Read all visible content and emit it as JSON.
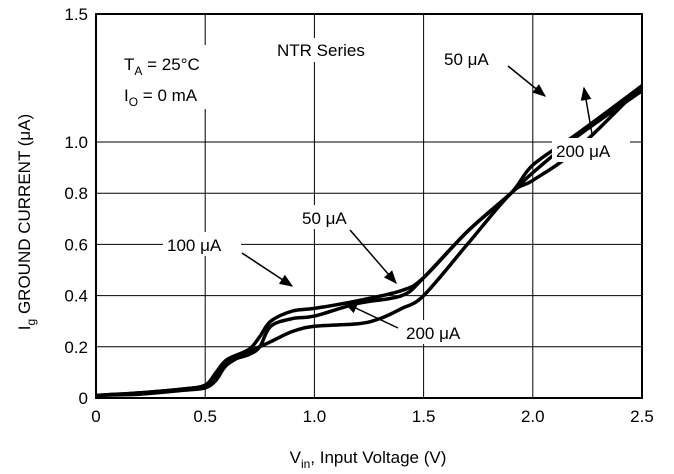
{
  "chart_data": {
    "type": "line",
    "title": "",
    "xlabel_main": "V",
    "xlabel_sub": "in",
    "xlabel_rest": ", Input Voltage (V)",
    "ylabel_main": "I",
    "ylabel_sub": "g",
    "ylabel_rest": " GROUND CURRENT (μA)",
    "xlim": [
      0,
      2.5
    ],
    "ylim": [
      0,
      1.5
    ],
    "xticks": [
      "0",
      "0.5",
      "1.0",
      "1.5",
      "2.0",
      "2.5"
    ],
    "yticks": [
      "0",
      "0.2",
      "0.4",
      "0.6",
      "0.8",
      "1.0",
      "1.5"
    ],
    "grid": true,
    "notes": {
      "series_name": "NTR Series",
      "ta_main": "T",
      "ta_sub": "A",
      "ta_rest": " = 25°C",
      "io_main": "I",
      "io_sub": "O",
      "io_rest": " = 0 mA"
    },
    "series_labels": [
      {
        "text": "50 μA",
        "target": "50uA-upper"
      },
      {
        "text": "200 μA",
        "target": "200uA-upper"
      },
      {
        "text": "50 μA",
        "target": "50uA-lower"
      },
      {
        "text": "100 μA",
        "target": "100uA"
      },
      {
        "text": "200 μA",
        "target": "200uA-lower"
      }
    ],
    "series": [
      {
        "id": "50uA",
        "x": [
          0,
          0.2,
          0.4,
          0.5,
          0.55,
          0.6,
          0.7,
          0.75,
          0.8,
          0.9,
          1.0,
          1.2,
          1.4,
          1.5,
          1.7,
          1.9,
          2.0,
          2.2,
          2.5
        ],
        "y": [
          0.01,
          0.02,
          0.035,
          0.05,
          0.09,
          0.14,
          0.17,
          0.2,
          0.28,
          0.31,
          0.32,
          0.37,
          0.4,
          0.47,
          0.65,
          0.8,
          0.91,
          1.03,
          1.22
        ]
      },
      {
        "id": "100uA",
        "x": [
          0,
          0.2,
          0.4,
          0.5,
          0.55,
          0.6,
          0.7,
          0.75,
          0.8,
          0.9,
          1.0,
          1.2,
          1.4,
          1.5,
          1.7,
          1.9,
          2.0,
          2.2,
          2.5
        ],
        "y": [
          0.01,
          0.02,
          0.035,
          0.05,
          0.1,
          0.15,
          0.19,
          0.24,
          0.3,
          0.34,
          0.35,
          0.38,
          0.42,
          0.47,
          0.65,
          0.8,
          0.88,
          1.02,
          1.2
        ]
      },
      {
        "id": "200uA",
        "x": [
          0,
          0.2,
          0.4,
          0.5,
          0.55,
          0.6,
          0.7,
          0.8,
          0.9,
          1.0,
          1.2,
          1.3,
          1.4,
          1.5,
          1.7,
          1.9,
          2.0,
          2.2,
          2.5
        ],
        "y": [
          0.01,
          0.015,
          0.03,
          0.04,
          0.07,
          0.13,
          0.18,
          0.22,
          0.26,
          0.28,
          0.29,
          0.31,
          0.35,
          0.4,
          0.6,
          0.8,
          0.85,
          0.97,
          1.22
        ]
      }
    ]
  }
}
